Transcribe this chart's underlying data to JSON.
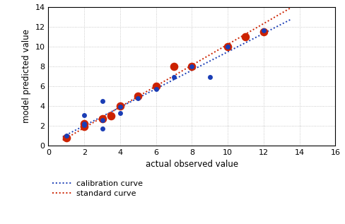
{
  "title": "",
  "xlabel": "actual observed value",
  "ylabel": "model predicted value",
  "xlim": [
    0,
    16
  ],
  "ylim": [
    0,
    14
  ],
  "xticks": [
    0,
    2,
    4,
    6,
    8,
    10,
    12,
    14,
    16
  ],
  "yticks": [
    0,
    2,
    4,
    6,
    8,
    10,
    12,
    14
  ],
  "blue_points": {
    "x": [
      1,
      2,
      2,
      2,
      3,
      3,
      3,
      4,
      4,
      5,
      6,
      7,
      8,
      9,
      10,
      12
    ],
    "y": [
      1.0,
      2.2,
      3.1,
      2.1,
      1.7,
      2.6,
      4.5,
      3.9,
      3.3,
      4.8,
      5.7,
      6.9,
      8.0,
      6.9,
      10.0,
      11.6
    ],
    "size": 25,
    "color": "#1a3db5"
  },
  "orange_points": {
    "x": [
      1,
      2,
      2,
      3,
      3.5,
      4,
      5,
      6,
      7,
      8,
      10,
      11,
      12
    ],
    "y": [
      0.8,
      1.9,
      2.2,
      2.7,
      3.0,
      4.0,
      5.0,
      6.0,
      8.0,
      8.0,
      10.0,
      11.0,
      11.5
    ],
    "size": 70,
    "color": "#cc2200"
  },
  "blue_line": {
    "x1": 0.8,
    "x2": 13.5,
    "slope": 0.93,
    "intercept": 0.15,
    "color": "#1a3db5",
    "linewidth": 1.4
  },
  "orange_line": {
    "x1": 0.8,
    "x2": 13.5,
    "slope": 1.05,
    "intercept": -0.3,
    "color": "#cc2200",
    "linewidth": 1.4
  },
  "legend_labels": [
    "calibration curve",
    "standard curve"
  ],
  "legend_colors": [
    "#1a3db5",
    "#cc2200"
  ],
  "figsize": [
    4.89,
    3.17
  ],
  "dpi": 100,
  "background_color": "#ffffff"
}
